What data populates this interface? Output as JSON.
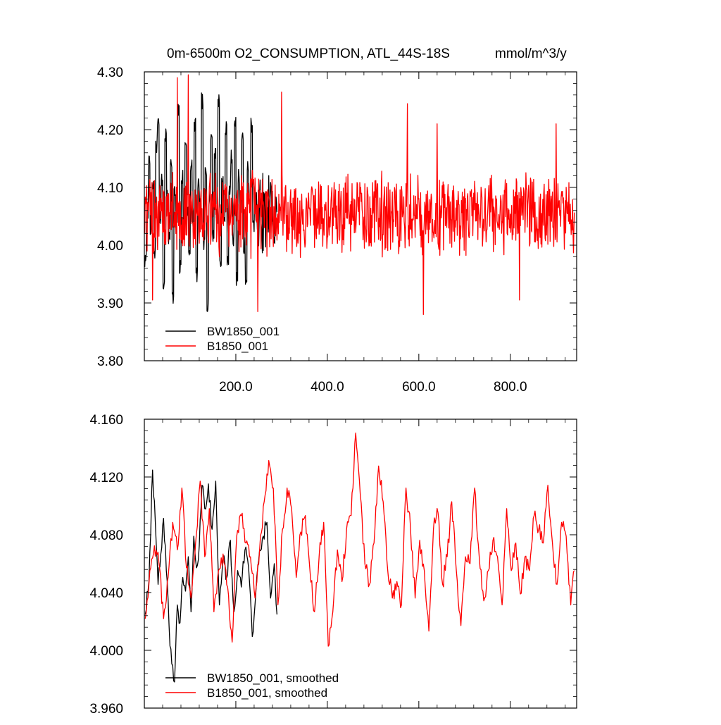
{
  "title": {
    "main": "0m-6500m O2_CONSUMPTION, ATL_44S-18S",
    "units": "mmol/m^3/y"
  },
  "chart_data": [
    {
      "type": "line",
      "xlim": [
        0,
        945
      ],
      "ylim": [
        3.8,
        4.3
      ],
      "y_ticks": [
        "3.80",
        "3.90",
        "4.00",
        "4.10",
        "4.20",
        "4.30"
      ],
      "x_ticks": [
        "200.0",
        "400.0",
        "600.0",
        "800.0"
      ],
      "legend_position": "bottom-left",
      "series": [
        {
          "name": "BW1850_001",
          "color": "#000000",
          "x_start": 1,
          "x_step": 1,
          "baseline": 4.055,
          "x_end": 290,
          "noise_amp": 0.075,
          "values": [
            3.97,
            4.06,
            4.14,
            4.02,
            4.1,
            3.99,
            4.17,
            4.22,
            4.05,
            4.11,
            3.93,
            4.19,
            4.08,
            4.01,
            4.15,
            3.91,
            4.09,
            4.04,
            4.23,
            3.96,
            4.12,
            4.02,
            4.18,
            4.06,
            3.99,
            4.14,
            4.03,
            4.21,
            3.95,
            4.1,
            4.07,
            4.25,
            4.0,
            4.13,
            3.9,
            4.08,
            4.19,
            4.02,
            4.16,
            4.05,
            4.25,
            3.97,
            4.11,
            4.04,
            4.2,
            3.98,
            4.09,
            4.15,
            4.01,
            4.22,
            3.94,
            4.12,
            4.06,
            4.18,
            4.0,
            3.93,
            4.14,
            4.07,
            4.21,
            4.03
          ]
        },
        {
          "name": "B1850_001",
          "color": "#ff0000",
          "x_start": 1,
          "x_step": 1,
          "x_end": 940,
          "baseline": 4.055,
          "noise_amp": 0.07,
          "peaks": [
            [
              72,
              4.29
            ],
            [
              96,
              4.295
            ],
            [
              300,
              4.265
            ],
            [
              575,
              4.245
            ],
            [
              640,
              4.21
            ],
            [
              900,
              4.21
            ]
          ],
          "troughs": [
            [
              18,
              3.905
            ],
            [
              248,
              3.885
            ],
            [
              610,
              3.88
            ],
            [
              820,
              3.905
            ]
          ]
        }
      ]
    },
    {
      "type": "line",
      "xlim": [
        0,
        945
      ],
      "ylim": [
        3.96,
        4.17
      ],
      "y_ticks": [
        "3.960",
        "4.000",
        "4.040",
        "4.080",
        "4.120",
        "4.160"
      ],
      "x_ticks": [],
      "legend_position": "bottom-left",
      "series": [
        {
          "name": "BW1850_001, smoothed",
          "color": "#000000",
          "x": [
            2,
            10,
            18,
            24,
            30,
            36,
            42,
            48,
            54,
            60,
            66,
            72,
            78,
            84,
            90,
            96,
            102,
            108,
            114,
            120,
            126,
            132,
            140,
            148,
            156,
            164,
            172,
            180,
            188,
            196,
            204,
            212,
            220,
            228,
            236,
            244,
            252,
            260,
            268,
            276,
            284,
            290
          ],
          "values": [
            4.028,
            4.052,
            4.133,
            4.095,
            4.05,
            4.072,
            4.098,
            4.06,
            4.02,
            3.992,
            3.979,
            4.035,
            4.022,
            4.055,
            4.045,
            4.07,
            4.03,
            4.085,
            4.062,
            4.078,
            4.122,
            4.105,
            4.123,
            4.09,
            4.125,
            4.035,
            4.07,
            4.055,
            4.082,
            4.03,
            4.06,
            4.048,
            4.075,
            4.062,
            4.012,
            4.045,
            4.075,
            4.085,
            4.095,
            4.04,
            4.065,
            4.028
          ]
        },
        {
          "name": "B1850_001, smoothed",
          "color": "#ff0000",
          "x": [
            2,
            12,
            22,
            32,
            42,
            52,
            62,
            72,
            82,
            92,
            102,
            112,
            122,
            132,
            142,
            152,
            162,
            172,
            182,
            192,
            202,
            212,
            222,
            232,
            242,
            252,
            262,
            272,
            282,
            292,
            302,
            312,
            322,
            332,
            342,
            352,
            362,
            372,
            382,
            392,
            402,
            412,
            422,
            432,
            442,
            452,
            462,
            472,
            482,
            492,
            502,
            512,
            522,
            532,
            542,
            552,
            562,
            572,
            582,
            592,
            602,
            612,
            622,
            632,
            642,
            652,
            662,
            672,
            682,
            692,
            702,
            712,
            722,
            732,
            742,
            752,
            762,
            772,
            782,
            792,
            802,
            812,
            822,
            832,
            842,
            852,
            862,
            872,
            882,
            892,
            902,
            912,
            922,
            932,
            940
          ],
          "values": [
            4.025,
            4.06,
            4.078,
            4.065,
            4.025,
            4.055,
            4.095,
            4.075,
            4.12,
            4.062,
            4.04,
            4.08,
            4.125,
            4.07,
            4.105,
            4.03,
            4.06,
            4.072,
            4.048,
            4.008,
            4.085,
            4.1,
            4.08,
            4.07,
            4.04,
            4.075,
            4.11,
            4.14,
            4.12,
            4.035,
            4.09,
            4.12,
            4.105,
            4.055,
            4.088,
            4.1,
            4.06,
            4.03,
            4.07,
            4.095,
            4.005,
            4.03,
            4.075,
            4.052,
            4.09,
            4.1,
            4.16,
            4.115,
            4.065,
            4.05,
            4.08,
            4.136,
            4.11,
            4.06,
            4.04,
            4.052,
            4.035,
            4.12,
            4.09,
            4.04,
            4.082,
            4.06,
            4.016,
            4.09,
            4.102,
            4.05,
            4.07,
            4.11,
            4.06,
            4.02,
            4.07,
            4.065,
            4.12,
            4.07,
            4.038,
            4.06,
            4.082,
            4.07,
            4.035,
            4.105,
            4.06,
            4.08,
            4.043,
            4.07,
            4.06,
            4.1,
            4.09,
            4.08,
            4.122,
            4.08,
            4.05,
            4.095,
            4.085,
            4.035,
            4.06
          ]
        }
      ]
    }
  ]
}
